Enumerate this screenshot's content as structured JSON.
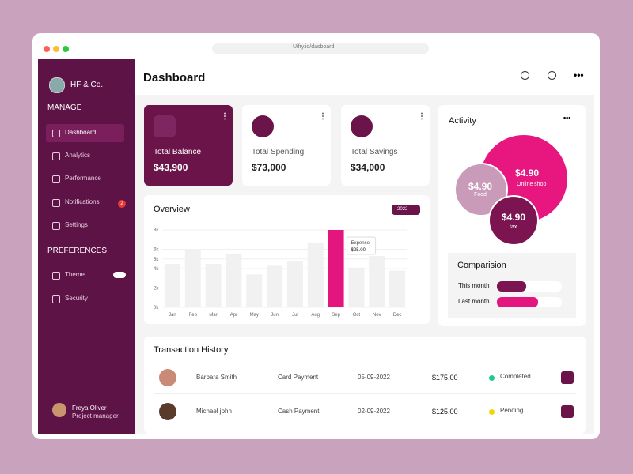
{
  "browser": {
    "url": "Uifry.io/dasboard"
  },
  "sidebar": {
    "brand": "HF & Co.",
    "sections": [
      {
        "title": "MANAGE",
        "items": [
          "Dashboard",
          "Analytics",
          "Performance",
          "Notifications",
          "Settings"
        ]
      },
      {
        "title": "PREFERENCES",
        "items": [
          "Theme",
          "Security"
        ]
      }
    ],
    "notification_count": "2",
    "user": {
      "name": "Freya Oliver",
      "role": "Project manager"
    }
  },
  "header": {
    "title": "Dashboard"
  },
  "cards": [
    {
      "label": "Total Balance",
      "value": "$43,900"
    },
    {
      "label": "Total Spending",
      "value": "$73,000"
    },
    {
      "label": "Total Savings",
      "value": "$34,000"
    }
  ],
  "overview": {
    "type": "bar",
    "title": "Overview",
    "year": "2022",
    "categories": [
      "Jan",
      "Feb",
      "Mar",
      "Apr",
      "May",
      "Jun",
      "Jul",
      "Aug",
      "Sep",
      "Oct",
      "Nov",
      "Dec"
    ],
    "values": [
      4500,
      6000,
      4500,
      5500,
      3400,
      4300,
      4800,
      6700,
      8000,
      4100,
      5300,
      3800
    ],
    "color": "#f1f1f1",
    "highlight": 8,
    "highlight_color": "#e3157e",
    "ylim": [
      0,
      8000
    ],
    "yticks": [
      {
        "value": 0,
        "label": "0k"
      },
      {
        "value": 2000,
        "label": "2k"
      },
      {
        "value": 4000,
        "label": "4k"
      },
      {
        "value": 5000,
        "label": "5k"
      },
      {
        "value": 6000,
        "label": "6k"
      },
      {
        "value": 8000,
        "label": "8k"
      }
    ],
    "tooltip": {
      "label": "Expense",
      "value": "$25.00"
    }
  },
  "activity": {
    "title": "Activity",
    "bubbles": [
      {
        "amount": "$4.90",
        "label": "Online shop"
      },
      {
        "amount": "$4.90",
        "label": "Food"
      },
      {
        "amount": "$4.90",
        "label": "tax"
      }
    ]
  },
  "comparison": {
    "title": "Comparision",
    "xlim": [
      0,
      100
    ],
    "rows": [
      {
        "label": "This month",
        "value": 45,
        "color": "#7b1450"
      },
      {
        "label": "Last month",
        "value": 63,
        "color": "#e3157e"
      }
    ]
  },
  "transactions": {
    "title": "Transaction History",
    "rows": [
      {
        "name": "Barbara Smith",
        "method": "Card Payment",
        "date": "05-09-2022",
        "amount": "$175.00",
        "status": "Completed",
        "status_color": "#22c98a"
      },
      {
        "name": "Michael john",
        "method": "Cash Payment",
        "date": "02-09-2022",
        "amount": "$125.00",
        "status": "Pending",
        "status_color": "#f2d600"
      }
    ]
  }
}
